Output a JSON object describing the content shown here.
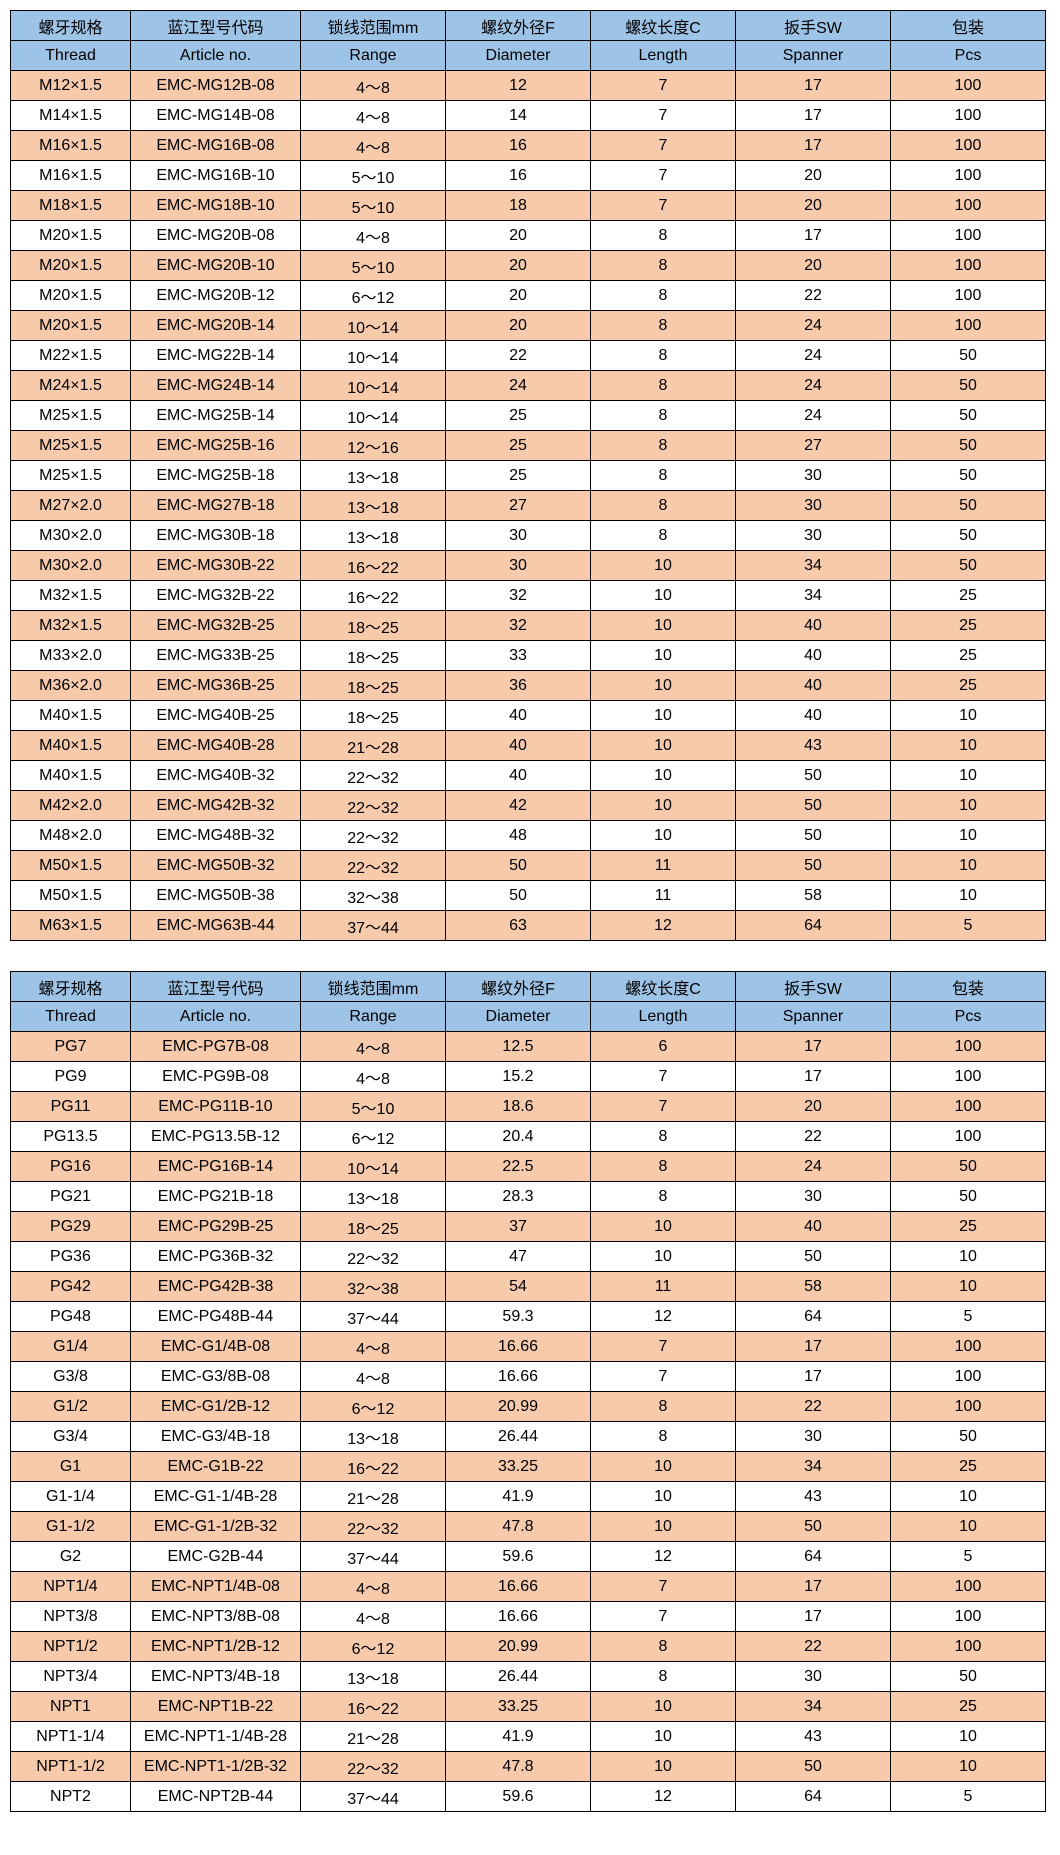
{
  "header_top": [
    "螺牙规格",
    "蓝江型号代码",
    "锁线范围mm",
    "螺纹外径F",
    "螺纹长度C",
    "扳手SW",
    "包装"
  ],
  "header_bot": [
    "Thread",
    "Article no.",
    "Range",
    "Diameter",
    "Length",
    "Spanner",
    "Pcs"
  ],
  "col_widths": [
    "120px",
    "170px",
    "145px",
    "145px",
    "145px",
    "155px",
    "155px"
  ],
  "header_bg": "#9dc3e6",
  "odd_bg": "#f7caac",
  "even_bg": "#ffffff",
  "border_color": "#000000",
  "font_size": 16,
  "table1_rows": [
    [
      "M12×1.5",
      "EMC-MG12B-08",
      "4～8",
      "12",
      "7",
      "17",
      "100"
    ],
    [
      "M14×1.5",
      "EMC-MG14B-08",
      "4～8",
      "14",
      "7",
      "17",
      "100"
    ],
    [
      "M16×1.5",
      "EMC-MG16B-08",
      "4～8",
      "16",
      "7",
      "17",
      "100"
    ],
    [
      "M16×1.5",
      "EMC-MG16B-10",
      "5～10",
      "16",
      "7",
      "20",
      "100"
    ],
    [
      "M18×1.5",
      "EMC-MG18B-10",
      "5～10",
      "18",
      "7",
      "20",
      "100"
    ],
    [
      "M20×1.5",
      "EMC-MG20B-08",
      "4～8",
      "20",
      "8",
      "17",
      "100"
    ],
    [
      "M20×1.5",
      "EMC-MG20B-10",
      "5～10",
      "20",
      "8",
      "20",
      "100"
    ],
    [
      "M20×1.5",
      "EMC-MG20B-12",
      "6～12",
      "20",
      "8",
      "22",
      "100"
    ],
    [
      "M20×1.5",
      "EMC-MG20B-14",
      "10～14",
      "20",
      "8",
      "24",
      "100"
    ],
    [
      "M22×1.5",
      "EMC-MG22B-14",
      "10～14",
      "22",
      "8",
      "24",
      "50"
    ],
    [
      "M24×1.5",
      "EMC-MG24B-14",
      "10～14",
      "24",
      "8",
      "24",
      "50"
    ],
    [
      "M25×1.5",
      "EMC-MG25B-14",
      "10～14",
      "25",
      "8",
      "24",
      "50"
    ],
    [
      "M25×1.5",
      "EMC-MG25B-16",
      "12～16",
      "25",
      "8",
      "27",
      "50"
    ],
    [
      "M25×1.5",
      "EMC-MG25B-18",
      "13～18",
      "25",
      "8",
      "30",
      "50"
    ],
    [
      "M27×2.0",
      "EMC-MG27B-18",
      "13～18",
      "27",
      "8",
      "30",
      "50"
    ],
    [
      "M30×2.0",
      "EMC-MG30B-18",
      "13～18",
      "30",
      "8",
      "30",
      "50"
    ],
    [
      "M30×2.0",
      "EMC-MG30B-22",
      "16～22",
      "30",
      "10",
      "34",
      "50"
    ],
    [
      "M32×1.5",
      "EMC-MG32B-22",
      "16～22",
      "32",
      "10",
      "34",
      "25"
    ],
    [
      "M32×1.5",
      "EMC-MG32B-25",
      "18～25",
      "32",
      "10",
      "40",
      "25"
    ],
    [
      "M33×2.0",
      "EMC-MG33B-25",
      "18～25",
      "33",
      "10",
      "40",
      "25"
    ],
    [
      "M36×2.0",
      "EMC-MG36B-25",
      "18～25",
      "36",
      "10",
      "40",
      "25"
    ],
    [
      "M40×1.5",
      "EMC-MG40B-25",
      "18～25",
      "40",
      "10",
      "40",
      "10"
    ],
    [
      "M40×1.5",
      "EMC-MG40B-28",
      "21～28",
      "40",
      "10",
      "43",
      "10"
    ],
    [
      "M40×1.5",
      "EMC-MG40B-32",
      "22～32",
      "40",
      "10",
      "50",
      "10"
    ],
    [
      "M42×2.0",
      "EMC-MG42B-32",
      "22～32",
      "42",
      "10",
      "50",
      "10"
    ],
    [
      "M48×2.0",
      "EMC-MG48B-32",
      "22～32",
      "48",
      "10",
      "50",
      "10"
    ],
    [
      "M50×1.5",
      "EMC-MG50B-32",
      "22～32",
      "50",
      "11",
      "50",
      "10"
    ],
    [
      "M50×1.5",
      "EMC-MG50B-38",
      "32～38",
      "50",
      "11",
      "58",
      "10"
    ],
    [
      "M63×1.5",
      "EMC-MG63B-44",
      "37～44",
      "63",
      "12",
      "64",
      "5"
    ]
  ],
  "table2_rows": [
    [
      "PG7",
      "EMC-PG7B-08",
      "4～8",
      "12.5",
      "6",
      "17",
      "100"
    ],
    [
      "PG9",
      "EMC-PG9B-08",
      "4～8",
      "15.2",
      "7",
      "17",
      "100"
    ],
    [
      "PG11",
      "EMC-PG11B-10",
      "5～10",
      "18.6",
      "7",
      "20",
      "100"
    ],
    [
      "PG13.5",
      "EMC-PG13.5B-12",
      "6～12",
      "20.4",
      "8",
      "22",
      "100"
    ],
    [
      "PG16",
      "EMC-PG16B-14",
      "10～14",
      "22.5",
      "8",
      "24",
      "50"
    ],
    [
      "PG21",
      "EMC-PG21B-18",
      "13～18",
      "28.3",
      "8",
      "30",
      "50"
    ],
    [
      "PG29",
      "EMC-PG29B-25",
      "18～25",
      "37",
      "10",
      "40",
      "25"
    ],
    [
      "PG36",
      "EMC-PG36B-32",
      "22～32",
      "47",
      "10",
      "50",
      "10"
    ],
    [
      "PG42",
      "EMC-PG42B-38",
      "32～38",
      "54",
      "11",
      "58",
      "10"
    ],
    [
      "PG48",
      "EMC-PG48B-44",
      "37～44",
      "59.3",
      "12",
      "64",
      "5"
    ],
    [
      "G1/4",
      "EMC-G1/4B-08",
      "4～8",
      "16.66",
      "7",
      "17",
      "100"
    ],
    [
      "G3/8",
      "EMC-G3/8B-08",
      "4～8",
      "16.66",
      "7",
      "17",
      "100"
    ],
    [
      "G1/2",
      "EMC-G1/2B-12",
      "6～12",
      "20.99",
      "8",
      "22",
      "100"
    ],
    [
      "G3/4",
      "EMC-G3/4B-18",
      "13～18",
      "26.44",
      "8",
      "30",
      "50"
    ],
    [
      "G1",
      "EMC-G1B-22",
      "16～22",
      "33.25",
      "10",
      "34",
      "25"
    ],
    [
      "G1-1/4",
      "EMC-G1-1/4B-28",
      "21～28",
      "41.9",
      "10",
      "43",
      "10"
    ],
    [
      "G1-1/2",
      "EMC-G1-1/2B-32",
      "22～32",
      "47.8",
      "10",
      "50",
      "10"
    ],
    [
      "G2",
      "EMC-G2B-44",
      "37～44",
      "59.6",
      "12",
      "64",
      "5"
    ],
    [
      "NPT1/4",
      "EMC-NPT1/4B-08",
      "4～8",
      "16.66",
      "7",
      "17",
      "100"
    ],
    [
      "NPT3/8",
      "EMC-NPT3/8B-08",
      "4～8",
      "16.66",
      "7",
      "17",
      "100"
    ],
    [
      "NPT1/2",
      "EMC-NPT1/2B-12",
      "6～12",
      "20.99",
      "8",
      "22",
      "100"
    ],
    [
      "NPT3/4",
      "EMC-NPT3/4B-18",
      "13～18",
      "26.44",
      "8",
      "30",
      "50"
    ],
    [
      "NPT1",
      "EMC-NPT1B-22",
      "16～22",
      "33.25",
      "10",
      "34",
      "25"
    ],
    [
      "NPT1-1/4",
      "EMC-NPT1-1/4B-28",
      "21～28",
      "41.9",
      "10",
      "43",
      "10"
    ],
    [
      "NPT1-1/2",
      "EMC-NPT1-1/2B-32",
      "22～32",
      "47.8",
      "10",
      "50",
      "10"
    ],
    [
      "NPT2",
      "EMC-NPT2B-44",
      "37～44",
      "59.6",
      "12",
      "64",
      "5"
    ]
  ]
}
